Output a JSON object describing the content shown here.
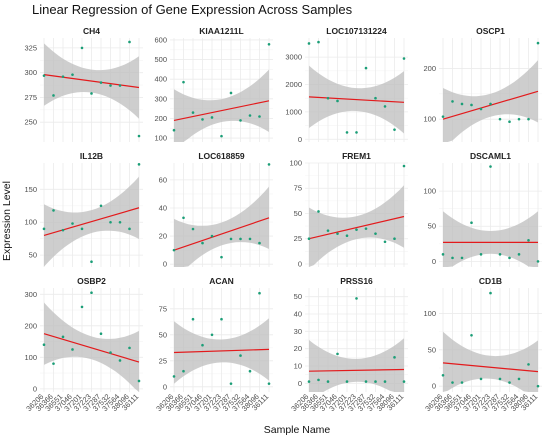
{
  "chart_data": {
    "type": "scatter",
    "title": "Linear Regression of Gene Expression Across Samples",
    "xlabel": "Sample Name",
    "ylabel": "Expression Level",
    "grid": true,
    "colors": {
      "points": "#1b9e77",
      "fit": "#e31a1c",
      "band": "#bdbdbd",
      "grid": "#ebebeb"
    },
    "samples": [
      "36206",
      "36366",
      "36551",
      "37046",
      "37201",
      "37223",
      "37287",
      "37532",
      "37564",
      "38096",
      "36111"
    ],
    "panels": [
      {
        "name": "CH4",
        "ylim": [
          230,
          335
        ],
        "yticks": [
          250,
          275,
          300,
          325
        ],
        "values": [
          297,
          277,
          296,
          298,
          325,
          279,
          290,
          287,
          287,
          331,
          236
        ],
        "fit": [
          298,
          285
        ]
      },
      {
        "name": "KIAA1211L",
        "ylim": [
          80,
          610
        ],
        "yticks": [
          100,
          200,
          300,
          400,
          500,
          600
        ],
        "values": [
          140,
          385,
          230,
          195,
          205,
          110,
          330,
          190,
          215,
          210,
          578
        ],
        "fit": [
          190,
          290
        ]
      },
      {
        "name": "LOC107131224",
        "ylim": [
          -100,
          3700
        ],
        "yticks": [
          0,
          1000,
          2000,
          3000
        ],
        "values": [
          3500,
          3550,
          1500,
          1400,
          250,
          250,
          2600,
          1500,
          1200,
          350,
          2950
        ],
        "fit": [
          1550,
          1350
        ]
      },
      {
        "name": "OSCP1",
        "ylim": [
          55,
          260
        ],
        "yticks": [
          100,
          200
        ],
        "values": [
          105,
          135,
          130,
          128,
          120,
          130,
          100,
          95,
          100,
          100,
          250
        ],
        "fit": [
          100,
          155
        ]
      },
      {
        "name": "IL12B",
        "ylim": [
          32,
          190
        ],
        "yticks": [
          50,
          100,
          150
        ],
        "values": [
          90,
          118,
          88,
          98,
          90,
          40,
          125,
          100,
          100,
          90,
          188
        ],
        "fit": [
          80,
          122
        ]
      },
      {
        "name": "LOC618859",
        "ylim": [
          -2,
          72
        ],
        "yticks": [
          0,
          20,
          40,
          60
        ],
        "values": [
          10,
          33,
          25,
          15,
          20,
          5,
          18,
          18,
          18,
          15,
          71
        ],
        "fit": [
          10,
          33
        ]
      },
      {
        "name": "FREM1",
        "ylim": [
          -3,
          100
        ],
        "yticks": [
          0,
          25,
          50,
          75,
          100
        ],
        "values": [
          25,
          52,
          33,
          30,
          28,
          34,
          35,
          30,
          22,
          25,
          97
        ],
        "fit": [
          25,
          47
        ]
      },
      {
        "name": "DSCAML1",
        "ylim": [
          -8,
          140
        ],
        "yticks": [
          0,
          50,
          100
        ],
        "values": [
          10,
          5,
          5,
          55,
          10,
          135,
          10,
          5,
          10,
          30,
          0
        ],
        "fit": [
          27,
          27
        ]
      },
      {
        "name": "OSBP2",
        "ylim": [
          -10,
          320
        ],
        "yticks": [
          0,
          100,
          200,
          300
        ],
        "values": [
          140,
          80,
          165,
          125,
          260,
          305,
          175,
          115,
          90,
          130,
          25
        ],
        "fit": [
          175,
          85
        ]
      },
      {
        "name": "ACAN",
        "ylim": [
          -5,
          95
        ],
        "yticks": [
          0,
          25,
          50,
          75
        ],
        "values": [
          10,
          15,
          65,
          40,
          50,
          65,
          3,
          30,
          15,
          90,
          3
        ],
        "fit": [
          33,
          36
        ]
      },
      {
        "name": "PRSS16",
        "ylim": [
          -5,
          55
        ],
        "yticks": [
          0,
          10,
          20,
          30,
          40,
          50
        ],
        "values": [
          1,
          2,
          1,
          17,
          1,
          49,
          1,
          1,
          1,
          15,
          1
        ],
        "fit": [
          7,
          8
        ]
      },
      {
        "name": "CD1B",
        "ylim": [
          -8,
          135
        ],
        "yticks": [
          0,
          50,
          100
        ],
        "values": [
          15,
          5,
          5,
          70,
          10,
          128,
          10,
          5,
          10,
          30,
          0
        ],
        "fit": [
          32,
          20
        ]
      }
    ]
  }
}
